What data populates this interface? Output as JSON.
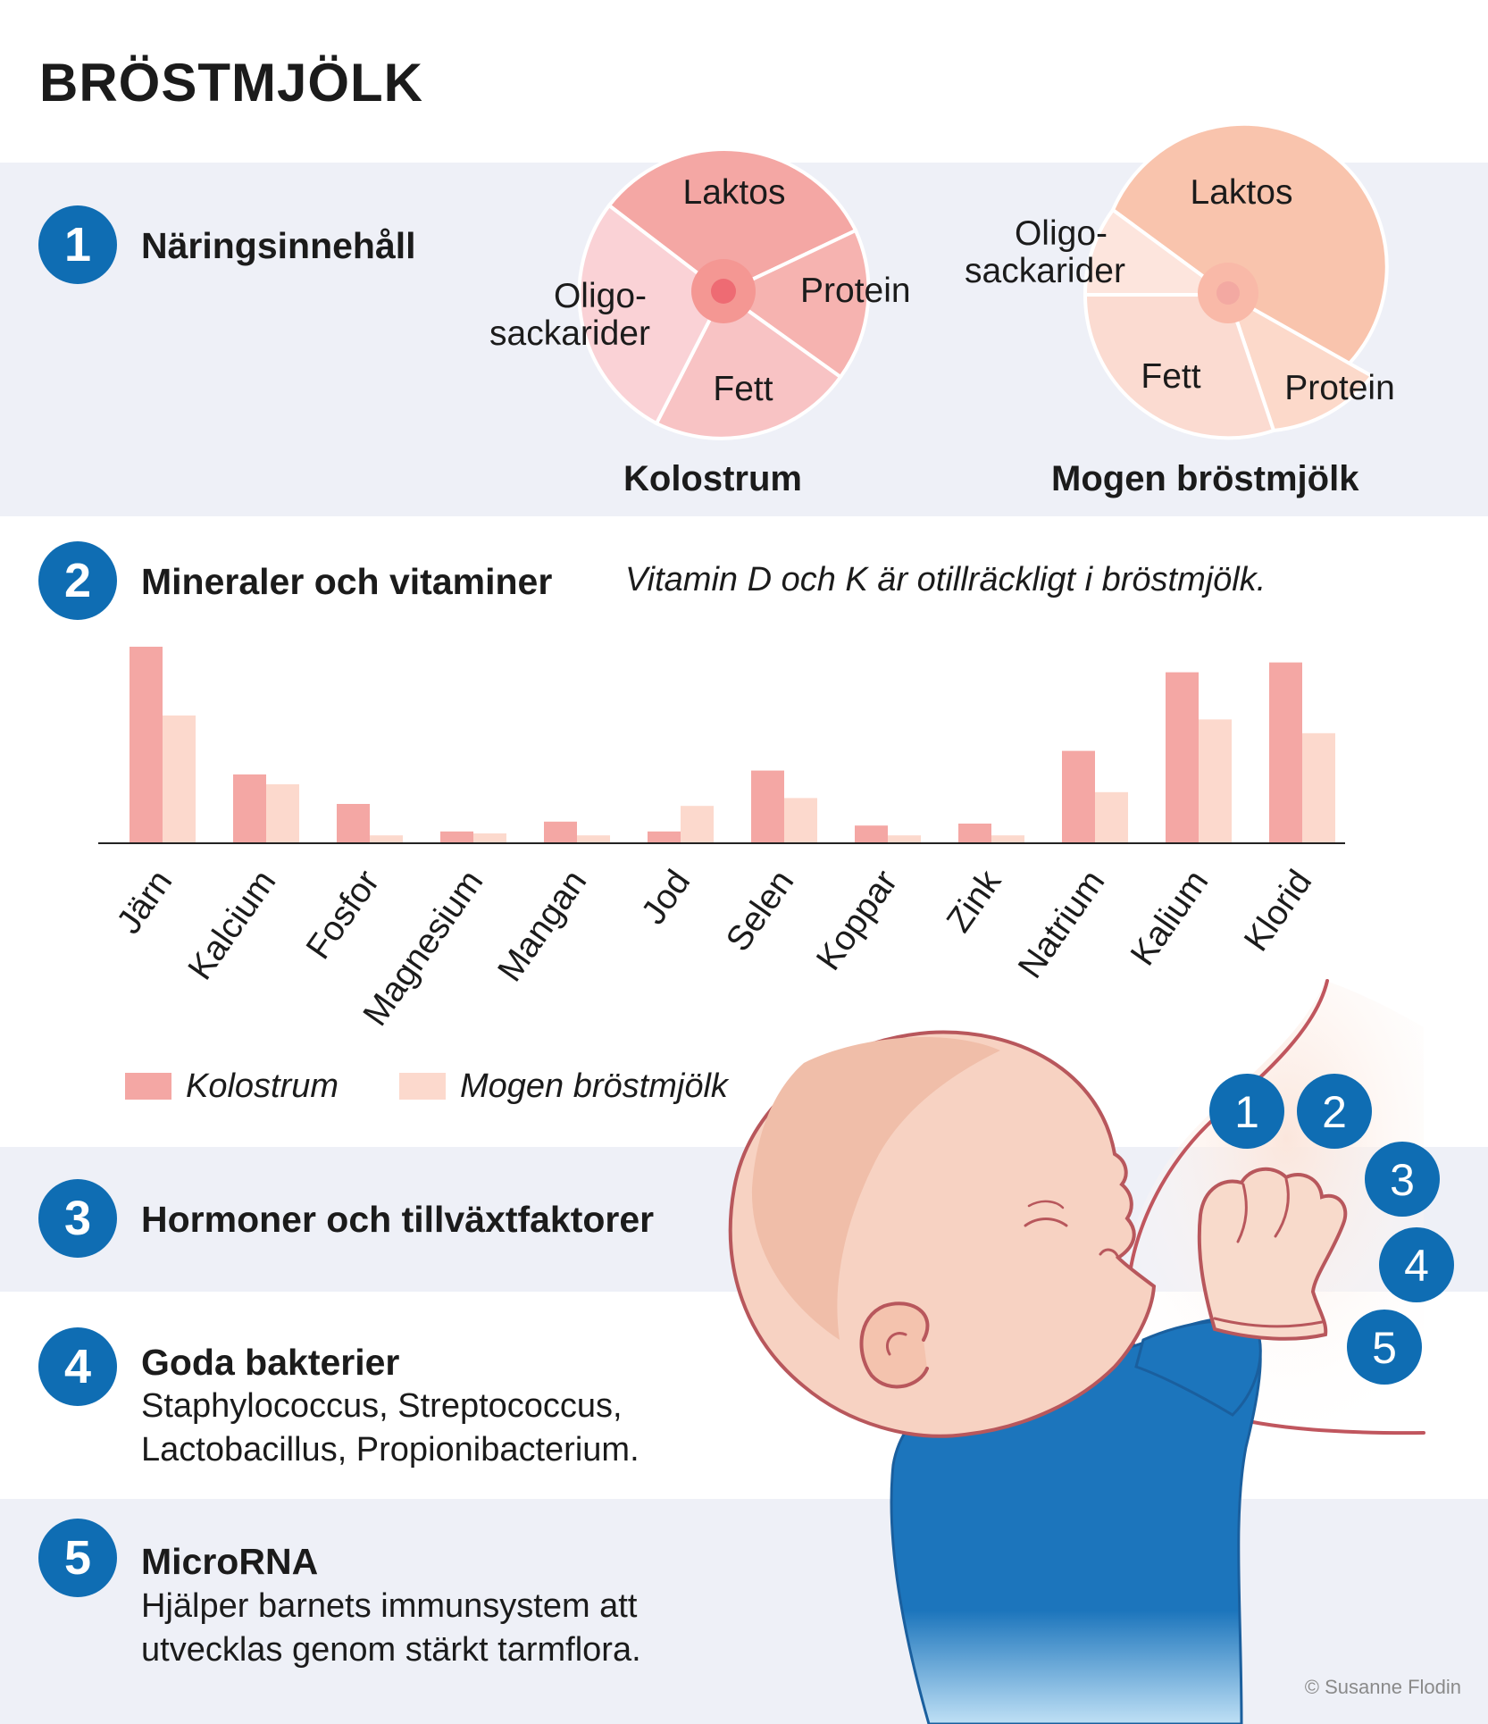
{
  "title": "BRÖSTMJÖLK",
  "sections": [
    {
      "number": "1",
      "title": "Näringsinnehåll"
    },
    {
      "number": "2",
      "title": "Mineraler och vitaminer",
      "note": "Vitamin D och K är otillräckligt i bröstmjölk."
    },
    {
      "number": "3",
      "title": "Hormoner och tillväxtfaktorer"
    },
    {
      "number": "4",
      "title": "Goda bakterier",
      "text_line1": "Staphylococcus, Streptococcus,",
      "text_line2": "Lactobacillus, Propionibacterium."
    },
    {
      "number": "5",
      "title": "MicroRNA",
      "text_line1": "Hjälper barnets immunsystem att",
      "text_line2": "utvecklas genom stärkt tarmflora."
    }
  ],
  "pies": [
    {
      "caption": "Kolostrum",
      "slices": [
        {
          "label": "Laktos",
          "color": "#f4a7a4"
        },
        {
          "label": "Protein",
          "color": "#f6b3b0"
        },
        {
          "label": "Fett",
          "color": "#f8c3c4"
        },
        {
          "label_line1": "Oligo-",
          "label_line2": "sackarider",
          "color": "#fad2d6"
        }
      ],
      "center_color": "#f07f83"
    },
    {
      "caption": "Mogen bröstmjölk",
      "slices": [
        {
          "label": "Laktos",
          "color": "#f9c4ad"
        },
        {
          "label": "Protein",
          "color": "#fcd9ca"
        },
        {
          "label": "Fett",
          "color": "#fbdbd1"
        },
        {
          "label_line1": "Oligo-",
          "label_line2": "sackarider",
          "color": "#fde5dd"
        }
      ],
      "center_color": "#f3a9a2"
    }
  ],
  "chart_data": {
    "type": "bar",
    "categories": [
      "Järn",
      "Kalcium",
      "Fosfor",
      "Magnesium",
      "Mangan",
      "Jod",
      "Selen",
      "Koppar",
      "Zink",
      "Natrium",
      "Kalium",
      "Klorid"
    ],
    "series": [
      {
        "name": "Kolostrum",
        "color": "#f4a7a4",
        "values": [
          100,
          35,
          20,
          6,
          11,
          6,
          37,
          9,
          10,
          47,
          87,
          92
        ]
      },
      {
        "name": "Mogen bröstmjölk",
        "color": "#fcd9cd",
        "values": [
          65,
          30,
          4,
          5,
          4,
          19,
          23,
          4,
          4,
          26,
          63,
          56
        ]
      }
    ],
    "ylim": [
      0,
      100
    ],
    "legend": "bottom-left"
  },
  "bubbles": [
    "1",
    "2",
    "3",
    "4",
    "5"
  ],
  "credit": "© Susanne Flodin",
  "colors": {
    "accent": "#0f6db3",
    "band": "#eef0f7",
    "baby_skin": "#f7d2c2",
    "baby_outline": "#bd5a5e",
    "shirt": "#1c75bc"
  }
}
